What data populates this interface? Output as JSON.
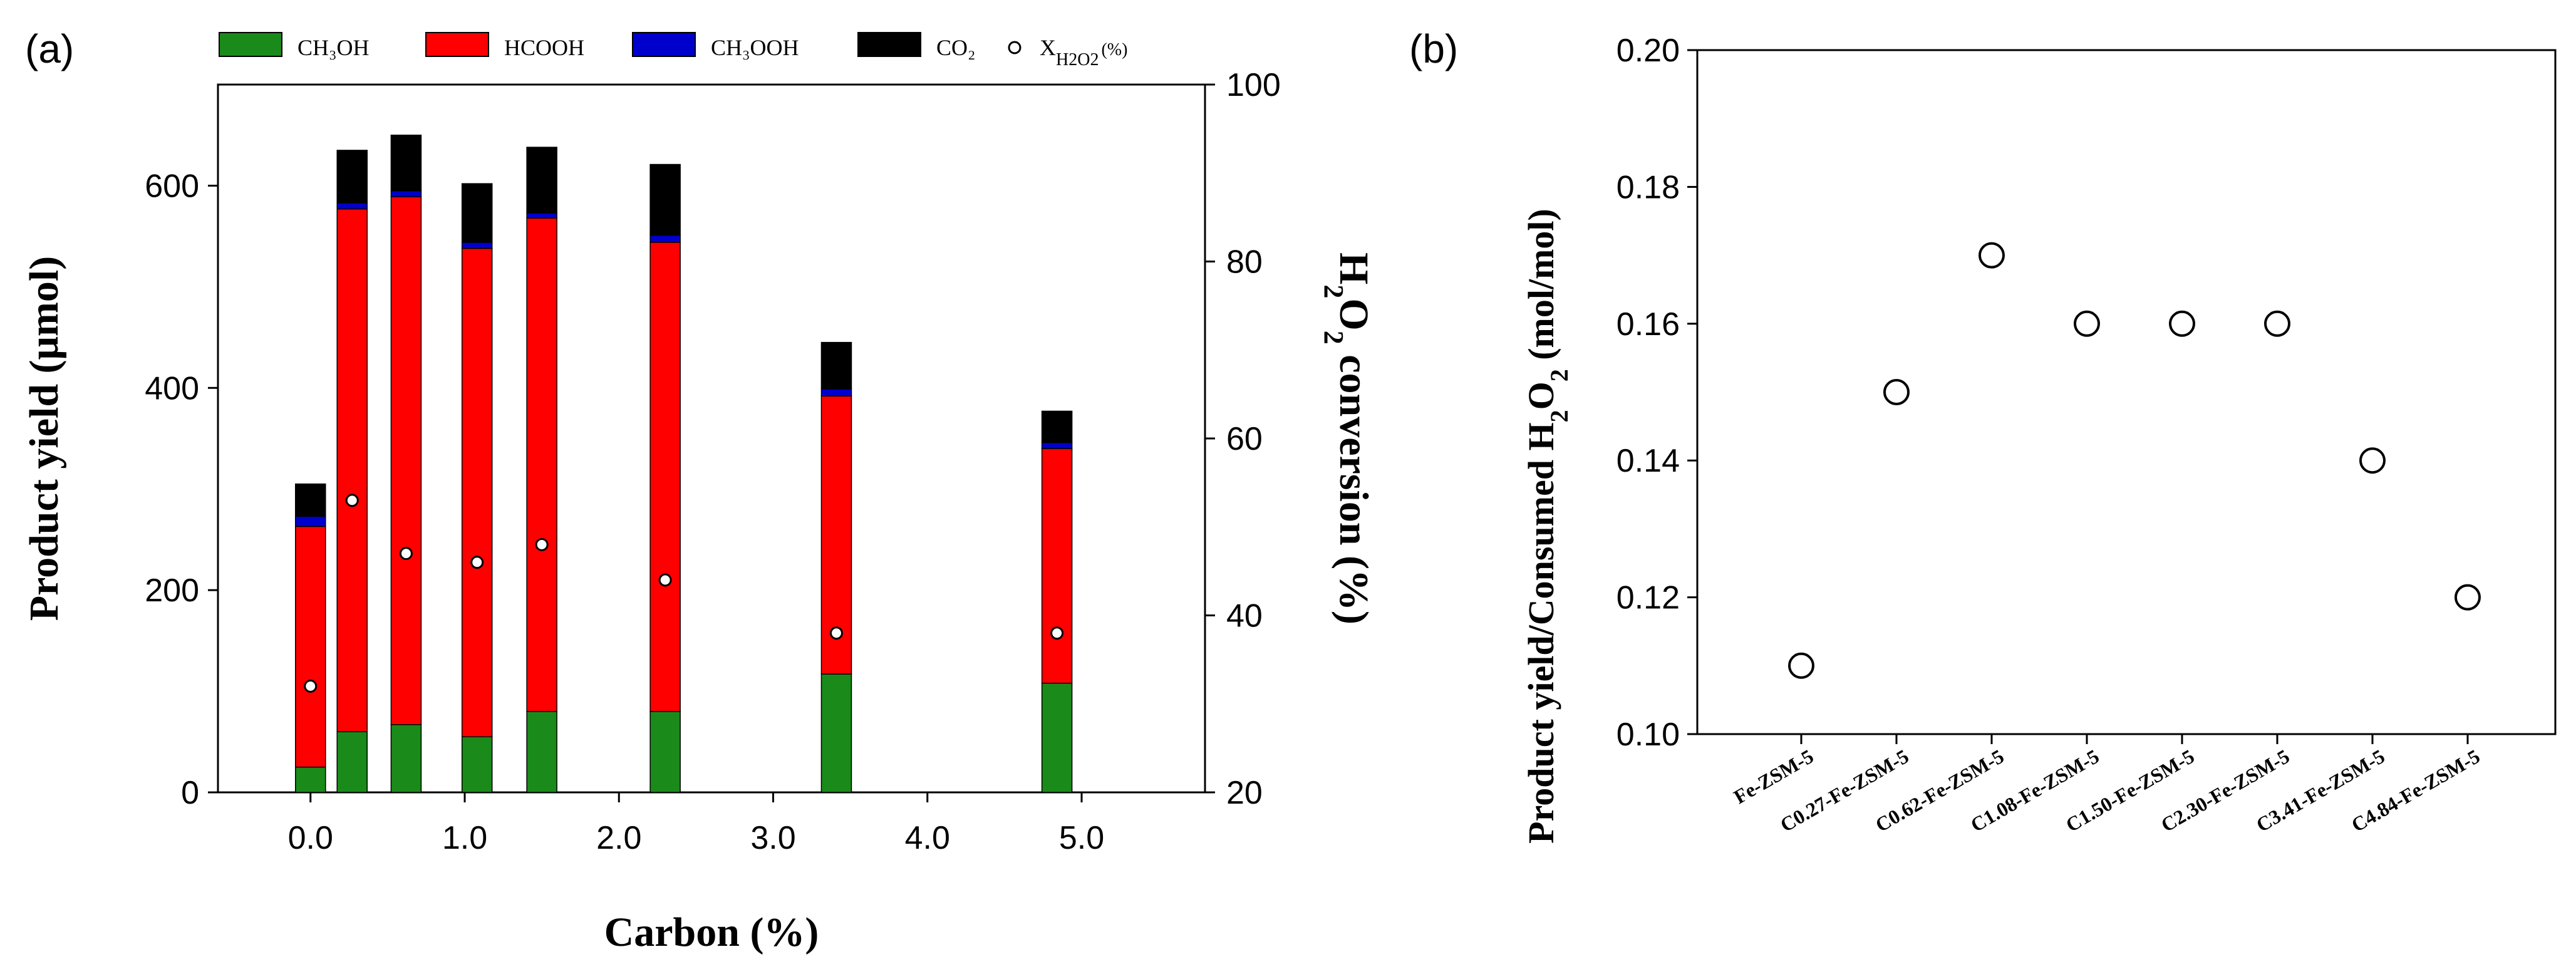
{
  "panel_a": {
    "label": "(a)",
    "legend": [
      {
        "key": "ch3oh",
        "label": "CH₃OH",
        "color": "#1a8a1a"
      },
      {
        "key": "hcooh",
        "label": "HCOOH",
        "color": "#ff0000"
      },
      {
        "key": "ch3ooh",
        "label": "CH₃OOH",
        "color": "#0000cc"
      },
      {
        "key": "co2",
        "label": "CO₂",
        "color": "#000000"
      },
      {
        "key": "xh2o2",
        "label": "X",
        "sub": "H2O2",
        "suffix": "(%)",
        "marker": "open-circle"
      }
    ],
    "xlabel": "Carbon (%)",
    "ylabel": "Product yield (μmol)",
    "y2label_parts": [
      "H",
      "2",
      "O",
      "2",
      " conversion (%)"
    ]
  },
  "panel_b": {
    "label": "(b)",
    "ylabel_parts": [
      "Product yield/Consumed H",
      "2",
      "O",
      "2",
      " (mol/mol)"
    ]
  },
  "chart_data": [
    {
      "type": "bar",
      "stacked": true,
      "title": "",
      "xlabel": "Carbon (%)",
      "ylabel": "Product yield (μmol)",
      "y2label": "H2O2 conversion (%)",
      "xlim": [
        -0.6,
        5.8
      ],
      "ylim": [
        0,
        700
      ],
      "y2lim": [
        20,
        100
      ],
      "xticks": [
        0.0,
        1.0,
        2.0,
        3.0,
        4.0,
        5.0
      ],
      "xtick_labels": [
        "0.0",
        "1.0",
        "2.0",
        "3.0",
        "4.0",
        "5.0"
      ],
      "yticks": [
        0,
        200,
        400,
        600
      ],
      "y2ticks": [
        20,
        40,
        60,
        80,
        100
      ],
      "x": [
        0.0,
        0.27,
        0.62,
        1.08,
        1.5,
        2.3,
        3.41,
        4.84
      ],
      "series": [
        {
          "name": "CH₃OH",
          "color": "#1a8a1a",
          "values": [
            25,
            60,
            67,
            55,
            80,
            80,
            117,
            108
          ]
        },
        {
          "name": "HCOOH",
          "color": "#ff0000",
          "values": [
            238,
            517,
            522,
            483,
            488,
            464,
            275,
            232
          ]
        },
        {
          "name": "CH₃OOH",
          "color": "#0000cc",
          "values": [
            10,
            6,
            6,
            6,
            5,
            7,
            7,
            6
          ]
        },
        {
          "name": "CO₂",
          "color": "#000000",
          "values": [
            32,
            52,
            55,
            58,
            65,
            70,
            46,
            31
          ]
        }
      ],
      "conversion": {
        "name": "X_H2O2 (%)",
        "axis": "y2",
        "values": [
          32,
          53,
          47,
          46,
          48,
          44,
          38,
          38
        ]
      },
      "legend_position": "top"
    },
    {
      "type": "scatter",
      "title": "",
      "xlabel": "",
      "ylabel": "Product yield/Consumed H2O2 (mol/mol)",
      "ylim": [
        0.1,
        0.2
      ],
      "yticks": [
        0.1,
        0.12,
        0.14,
        0.16,
        0.18,
        0.2
      ],
      "ytick_labels": [
        "0.10",
        "0.12",
        "0.14",
        "0.16",
        "0.18",
        "0.20"
      ],
      "categories": [
        "Fe-ZSM-5",
        "C0.27-Fe-ZSM-5",
        "C0.62-Fe-ZSM-5",
        "C1.08-Fe-ZSM-5",
        "C1.50-Fe-ZSM-5",
        "C2.30-Fe-ZSM-5",
        "C3.41-Fe-ZSM-5",
        "C4.84-Fe-ZSM-5"
      ],
      "values": [
        0.11,
        0.15,
        0.17,
        0.16,
        0.16,
        0.16,
        0.14,
        0.12
      ]
    }
  ]
}
